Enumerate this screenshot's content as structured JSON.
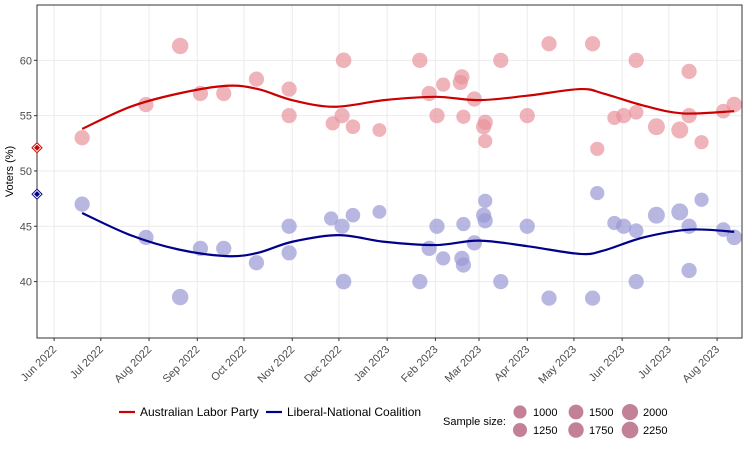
{
  "chart_data": {
    "type": "scatter",
    "title": "",
    "xlabel": "",
    "ylabel": "Voters (%)",
    "ylim": [
      34.9,
      65
    ],
    "yticks": [
      40,
      45,
      50,
      55,
      60
    ],
    "x_start_date": "2022-05-21",
    "x_end_date": "2023-08-17",
    "x_ticks": [
      {
        "label": "Jun 2022",
        "date": "2022-06-01"
      },
      {
        "label": "Jul 2022",
        "date": "2022-07-01"
      },
      {
        "label": "Aug 2022",
        "date": "2022-08-01"
      },
      {
        "label": "Sep 2022",
        "date": "2022-09-01"
      },
      {
        "label": "Oct 2022",
        "date": "2022-10-01"
      },
      {
        "label": "Nov 2022",
        "date": "2022-11-01"
      },
      {
        "label": "Dec 2022",
        "date": "2022-12-01"
      },
      {
        "label": "Jan 2023",
        "date": "2023-01-01"
      },
      {
        "label": "Feb 2023",
        "date": "2023-02-01"
      },
      {
        "label": "Mar 2023",
        "date": "2023-03-01"
      },
      {
        "label": "Apr 2023",
        "date": "2023-04-01"
      },
      {
        "label": "May 2023",
        "date": "2023-05-01"
      },
      {
        "label": "Jun 2023",
        "date": "2023-06-01"
      },
      {
        "label": "Jul 2023",
        "date": "2023-07-01"
      },
      {
        "label": "Aug 2023",
        "date": "2023-08-01"
      }
    ],
    "grid": true,
    "legend_position": "bottom",
    "series": [
      {
        "name": "Australian Labor Party",
        "color": "#cc0000",
        "point_color": "#e8939c",
        "election_result": 52.1,
        "points": [
          {
            "date": "2022-06-19",
            "value": 53.0,
            "n": 1400
          },
          {
            "date": "2022-07-30",
            "value": 56.0,
            "n": 1400
          },
          {
            "date": "2022-08-21",
            "value": 61.3,
            "n": 1800
          },
          {
            "date": "2022-09-03",
            "value": 57.0,
            "n": 1400
          },
          {
            "date": "2022-09-18",
            "value": 57.0,
            "n": 1400
          },
          {
            "date": "2022-10-09",
            "value": 58.3,
            "n": 1400
          },
          {
            "date": "2022-10-30",
            "value": 57.4,
            "n": 1400
          },
          {
            "date": "2022-10-30",
            "value": 55.0,
            "n": 1400
          },
          {
            "date": "2022-11-27",
            "value": 54.3,
            "n": 1100
          },
          {
            "date": "2022-12-04",
            "value": 60.0,
            "n": 1500
          },
          {
            "date": "2022-12-03",
            "value": 55.0,
            "n": 1400
          },
          {
            "date": "2022-12-10",
            "value": 54.0,
            "n": 1200
          },
          {
            "date": "2022-12-27",
            "value": 53.7,
            "n": 1000
          },
          {
            "date": "2023-01-22",
            "value": 60.0,
            "n": 1400
          },
          {
            "date": "2023-01-28",
            "value": 57.0,
            "n": 1400
          },
          {
            "date": "2023-02-02",
            "value": 55.0,
            "n": 1400
          },
          {
            "date": "2023-02-06",
            "value": 57.8,
            "n": 1100
          },
          {
            "date": "2023-02-19",
            "value": 54.9,
            "n": 1100
          },
          {
            "date": "2023-02-18",
            "value": 58.5,
            "n": 1400
          },
          {
            "date": "2023-02-17",
            "value": 58.0,
            "n": 1400
          },
          {
            "date": "2023-02-26",
            "value": 56.5,
            "n": 1400
          },
          {
            "date": "2023-03-05",
            "value": 54.4,
            "n": 1400
          },
          {
            "date": "2023-03-04",
            "value": 54.0,
            "n": 1400
          },
          {
            "date": "2023-03-05",
            "value": 52.7,
            "n": 1100
          },
          {
            "date": "2023-03-15",
            "value": 60.0,
            "n": 1400
          },
          {
            "date": "2023-04-01",
            "value": 55.0,
            "n": 1400
          },
          {
            "date": "2023-04-15",
            "value": 61.5,
            "n": 1400
          },
          {
            "date": "2023-05-13",
            "value": 61.5,
            "n": 1400
          },
          {
            "date": "2023-05-16",
            "value": 52.0,
            "n": 1100
          },
          {
            "date": "2023-05-27",
            "value": 54.8,
            "n": 1100
          },
          {
            "date": "2023-06-02",
            "value": 55.0,
            "n": 1400
          },
          {
            "date": "2023-06-10",
            "value": 55.3,
            "n": 1200
          },
          {
            "date": "2023-06-10",
            "value": 60.0,
            "n": 1400
          },
          {
            "date": "2023-06-23",
            "value": 54.0,
            "n": 2000
          },
          {
            "date": "2023-07-08",
            "value": 53.7,
            "n": 2000
          },
          {
            "date": "2023-07-14",
            "value": 59.0,
            "n": 1400
          },
          {
            "date": "2023-07-14",
            "value": 55.0,
            "n": 1400
          },
          {
            "date": "2023-07-22",
            "value": 52.6,
            "n": 1100
          },
          {
            "date": "2023-08-05",
            "value": 55.4,
            "n": 1200
          },
          {
            "date": "2023-08-12",
            "value": 56.0,
            "n": 1500
          }
        ],
        "trend": [
          {
            "date": "2022-06-19",
            "value": 53.8
          },
          {
            "date": "2022-07-20",
            "value": 55.8
          },
          {
            "date": "2022-08-20",
            "value": 57.0
          },
          {
            "date": "2022-09-20",
            "value": 57.7
          },
          {
            "date": "2022-10-10",
            "value": 57.4
          },
          {
            "date": "2022-11-01",
            "value": 56.4
          },
          {
            "date": "2022-11-28",
            "value": 55.8
          },
          {
            "date": "2022-12-30",
            "value": 56.4
          },
          {
            "date": "2023-02-01",
            "value": 56.7
          },
          {
            "date": "2023-03-01",
            "value": 56.4
          },
          {
            "date": "2023-04-01",
            "value": 56.8
          },
          {
            "date": "2023-05-05",
            "value": 57.4
          },
          {
            "date": "2023-05-20",
            "value": 57.0
          },
          {
            "date": "2023-06-15",
            "value": 55.9
          },
          {
            "date": "2023-07-10",
            "value": 55.2
          },
          {
            "date": "2023-08-12",
            "value": 55.4
          }
        ]
      },
      {
        "name": "Liberal-National Coalition",
        "color": "#00008b",
        "point_color": "#9999d6",
        "election_result": 47.9,
        "points": [
          {
            "date": "2022-06-19",
            "value": 47.0,
            "n": 1400
          },
          {
            "date": "2022-07-30",
            "value": 44.0,
            "n": 1400
          },
          {
            "date": "2022-08-21",
            "value": 38.6,
            "n": 1800
          },
          {
            "date": "2022-09-03",
            "value": 43.0,
            "n": 1400
          },
          {
            "date": "2022-09-18",
            "value": 43.0,
            "n": 1400
          },
          {
            "date": "2022-10-09",
            "value": 41.7,
            "n": 1400
          },
          {
            "date": "2022-10-30",
            "value": 45.0,
            "n": 1400
          },
          {
            "date": "2022-10-30",
            "value": 42.6,
            "n": 1400
          },
          {
            "date": "2022-11-26",
            "value": 45.7,
            "n": 1100
          },
          {
            "date": "2022-12-04",
            "value": 40.0,
            "n": 1500
          },
          {
            "date": "2022-12-03",
            "value": 45.0,
            "n": 1400
          },
          {
            "date": "2022-12-10",
            "value": 46.0,
            "n": 1200
          },
          {
            "date": "2022-12-27",
            "value": 46.3,
            "n": 1000
          },
          {
            "date": "2023-01-22",
            "value": 40.0,
            "n": 1400
          },
          {
            "date": "2023-01-28",
            "value": 43.0,
            "n": 1400
          },
          {
            "date": "2023-02-02",
            "value": 45.0,
            "n": 1400
          },
          {
            "date": "2023-02-06",
            "value": 42.1,
            "n": 1100
          },
          {
            "date": "2023-02-19",
            "value": 45.2,
            "n": 1100
          },
          {
            "date": "2023-02-18",
            "value": 42.1,
            "n": 1400
          },
          {
            "date": "2023-02-19",
            "value": 41.5,
            "n": 1400
          },
          {
            "date": "2023-02-26",
            "value": 43.5,
            "n": 1400
          },
          {
            "date": "2023-03-05",
            "value": 47.3,
            "n": 1100
          },
          {
            "date": "2023-03-04",
            "value": 46.0,
            "n": 1400
          },
          {
            "date": "2023-03-05",
            "value": 45.5,
            "n": 1400
          },
          {
            "date": "2023-03-15",
            "value": 40.0,
            "n": 1400
          },
          {
            "date": "2023-04-01",
            "value": 45.0,
            "n": 1400
          },
          {
            "date": "2023-04-15",
            "value": 38.5,
            "n": 1400
          },
          {
            "date": "2023-05-13",
            "value": 38.5,
            "n": 1400
          },
          {
            "date": "2023-05-16",
            "value": 48.0,
            "n": 1100
          },
          {
            "date": "2023-05-27",
            "value": 45.3,
            "n": 1100
          },
          {
            "date": "2023-06-02",
            "value": 45.0,
            "n": 1400
          },
          {
            "date": "2023-06-10",
            "value": 44.6,
            "n": 1200
          },
          {
            "date": "2023-06-10",
            "value": 40.0,
            "n": 1400
          },
          {
            "date": "2023-06-23",
            "value": 46.0,
            "n": 2000
          },
          {
            "date": "2023-07-08",
            "value": 46.3,
            "n": 2000
          },
          {
            "date": "2023-07-14",
            "value": 41.0,
            "n": 1400
          },
          {
            "date": "2023-07-14",
            "value": 45.0,
            "n": 1400
          },
          {
            "date": "2023-07-22",
            "value": 47.4,
            "n": 1100
          },
          {
            "date": "2023-08-05",
            "value": 44.7,
            "n": 1200
          },
          {
            "date": "2023-08-12",
            "value": 44.0,
            "n": 1500
          }
        ],
        "trend": [
          {
            "date": "2022-06-19",
            "value": 46.2
          },
          {
            "date": "2022-07-20",
            "value": 44.2
          },
          {
            "date": "2022-08-20",
            "value": 42.9
          },
          {
            "date": "2022-09-20",
            "value": 42.3
          },
          {
            "date": "2022-10-10",
            "value": 42.6
          },
          {
            "date": "2022-11-01",
            "value": 43.6
          },
          {
            "date": "2022-12-01",
            "value": 44.2
          },
          {
            "date": "2022-12-30",
            "value": 43.6
          },
          {
            "date": "2023-02-01",
            "value": 43.3
          },
          {
            "date": "2023-03-01",
            "value": 43.7
          },
          {
            "date": "2023-04-01",
            "value": 43.2
          },
          {
            "date": "2023-05-05",
            "value": 42.5
          },
          {
            "date": "2023-05-20",
            "value": 42.8
          },
          {
            "date": "2023-06-15",
            "value": 44.0
          },
          {
            "date": "2023-07-15",
            "value": 44.7
          },
          {
            "date": "2023-08-12",
            "value": 44.5
          }
        ]
      }
    ],
    "size_legend": {
      "title": "Sample size:",
      "color": "#b86b85",
      "values": [
        1000,
        1250,
        1500,
        1750,
        2000,
        2250
      ]
    }
  }
}
